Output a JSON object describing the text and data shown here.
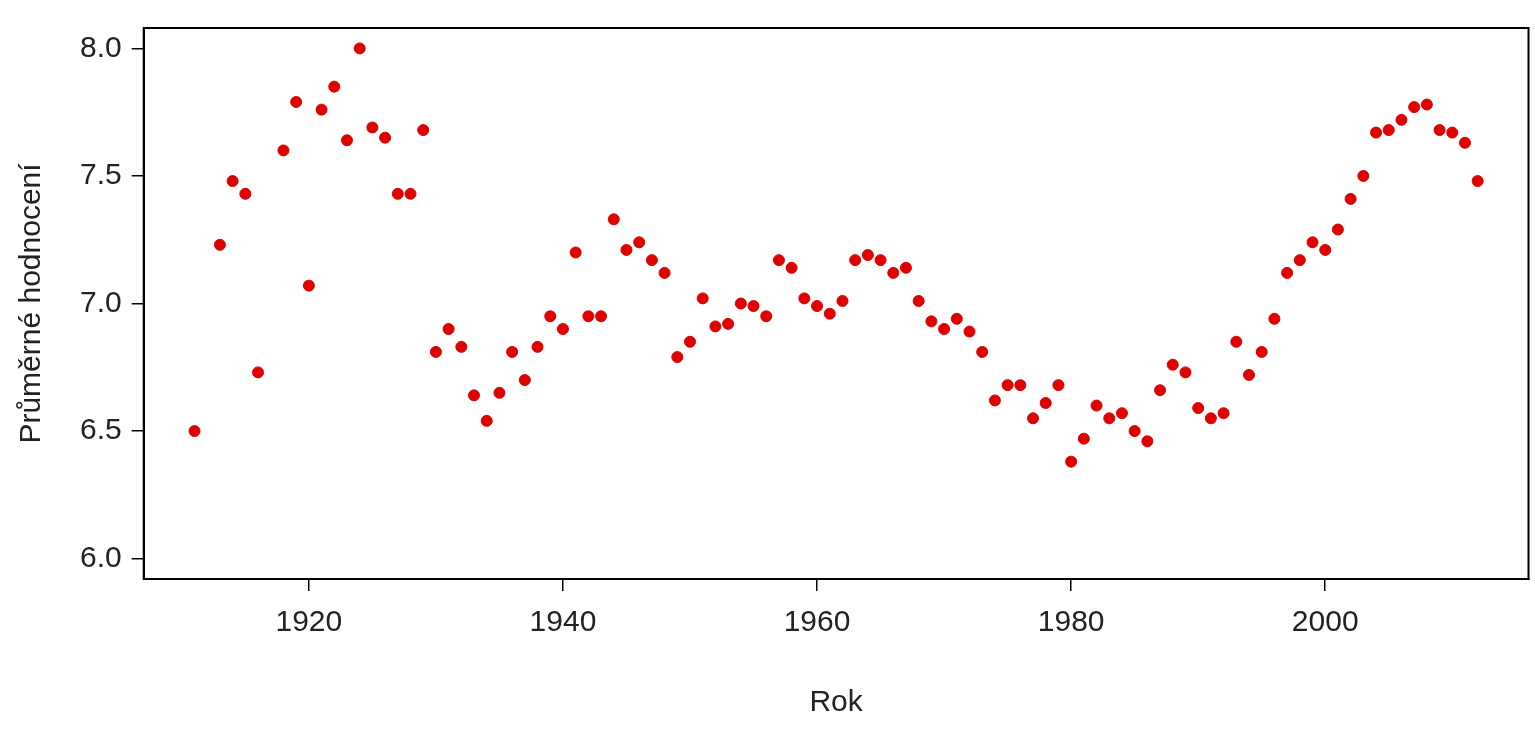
{
  "chart_data": {
    "type": "scatter",
    "xlabel": "Rok",
    "ylabel": "Průměrné hodnocení",
    "x": [
      1911,
      1913,
      1914,
      1915,
      1916,
      1918,
      1919,
      1920,
      1921,
      1922,
      1923,
      1924,
      1925,
      1926,
      1927,
      1928,
      1929,
      1930,
      1931,
      1932,
      1933,
      1934,
      1935,
      1936,
      1937,
      1938,
      1939,
      1940,
      1941,
      1942,
      1943,
      1944,
      1945,
      1946,
      1947,
      1948,
      1949,
      1950,
      1951,
      1952,
      1953,
      1954,
      1955,
      1956,
      1957,
      1958,
      1959,
      1960,
      1961,
      1962,
      1963,
      1964,
      1965,
      1966,
      1967,
      1968,
      1969,
      1970,
      1971,
      1972,
      1973,
      1974,
      1975,
      1976,
      1977,
      1978,
      1979,
      1980,
      1981,
      1982,
      1983,
      1984,
      1985,
      1986,
      1987,
      1988,
      1989,
      1990,
      1991,
      1992,
      1993,
      1994,
      1995,
      1996,
      1997,
      1998,
      1999,
      2000,
      2001,
      2002,
      2003,
      2004,
      2005,
      2006,
      2007,
      2008,
      2009,
      2010,
      2011,
      2012
    ],
    "series": [
      {
        "color": "#e00000",
        "values": [
          6.5,
          7.23,
          7.48,
          7.43,
          6.73,
          7.6,
          7.79,
          7.07,
          7.76,
          7.85,
          7.64,
          8.0,
          7.69,
          7.65,
          7.43,
          7.43,
          7.68,
          6.81,
          6.9,
          6.83,
          6.64,
          6.54,
          6.65,
          6.81,
          6.7,
          6.83,
          6.95,
          6.9,
          7.2,
          6.95,
          6.95,
          7.33,
          7.21,
          7.24,
          7.17,
          7.12,
          6.79,
          6.85,
          7.02,
          6.91,
          6.92,
          7.0,
          6.99,
          6.95,
          7.17,
          7.14,
          7.02,
          6.99,
          6.96,
          7.01,
          7.17,
          7.19,
          7.17,
          7.12,
          7.14,
          7.01,
          6.93,
          6.9,
          6.94,
          6.89,
          6.81,
          6.62,
          6.68,
          6.68,
          6.55,
          6.61,
          6.68,
          6.38,
          6.47,
          6.6,
          6.55,
          6.57,
          6.5,
          6.46,
          6.66,
          6.76,
          6.73,
          6.59,
          6.55,
          6.57,
          6.85,
          6.72,
          6.81,
          6.94,
          7.12,
          7.17,
          7.24,
          7.21,
          7.29,
          7.41,
          7.5,
          7.67,
          7.68,
          7.72,
          7.77,
          7.78,
          7.68,
          7.67,
          7.63,
          7.48
        ]
      }
    ],
    "xlim": [
      1907,
      2016
    ],
    "xticks": [
      1920,
      1940,
      1960,
      1980,
      2000
    ],
    "ylim": [
      5.92,
      8.08
    ],
    "yticks": [
      {
        "value": 6,
        "label": "6.0"
      },
      {
        "value": 6.5,
        "label": "6.5"
      },
      {
        "value": 7,
        "label": "7.0"
      },
      {
        "value": 7.5,
        "label": "7.5"
      },
      {
        "value": 8,
        "label": "8.0"
      }
    ],
    "grid": false,
    "legend": false,
    "marker": "circle"
  }
}
